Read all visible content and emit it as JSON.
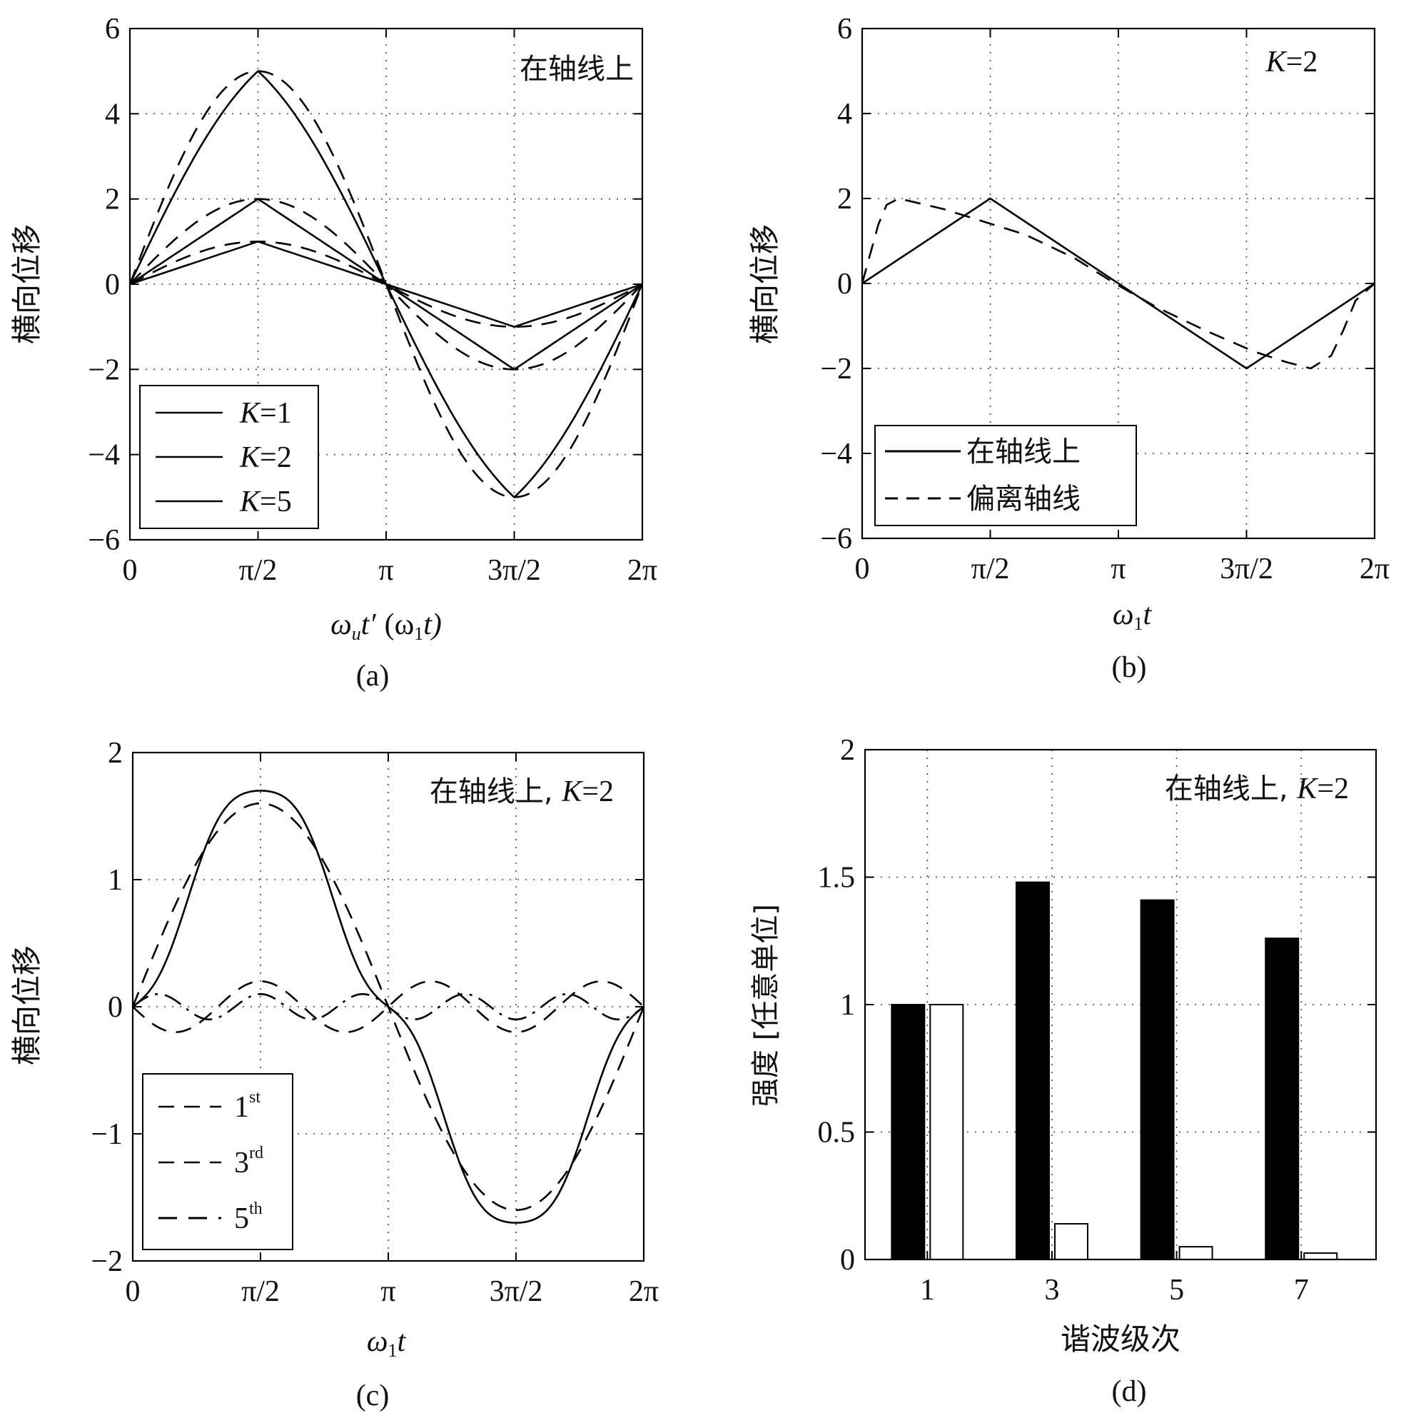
{
  "colors": {
    "ink": "#111111",
    "bar_filled": "#000000",
    "bar_open": "#ffffff"
  },
  "chart_data": [
    {
      "id": "a",
      "type": "line",
      "panel_label": "(a)",
      "annotation": "在轴线上",
      "ylabel": "横向位移",
      "xlabel_parts": {
        "omega": "ω",
        "sub": "u",
        "t_prime": "t′",
        "paren_open": "(ω",
        "sub1": "1",
        "t_close": "t)"
      },
      "xlim": [
        0,
        6.2832
      ],
      "ylim": [
        -6,
        6
      ],
      "yticks": [
        6,
        4,
        2,
        0,
        -2,
        -4,
        -6
      ],
      "ytick_labels": [
        "6",
        "4",
        "2",
        "0",
        "−2",
        "−4",
        "−6"
      ],
      "xticks": [
        0,
        1.5708,
        3.1416,
        4.7124,
        6.2832
      ],
      "xtick_labels": [
        "0",
        "π/2",
        "π",
        "3π/2",
        "2π"
      ],
      "grid": true,
      "legend_position": "bottom-left",
      "legend": [
        {
          "K": "K",
          "rest": "=1"
        },
        {
          "K": "K",
          "rest": "=2"
        },
        {
          "K": "K",
          "rest": "=5"
        }
      ],
      "series": [
        {
          "K": 1,
          "style": "solid",
          "shape": "triangle",
          "amplitude": 1
        },
        {
          "K": 1,
          "style": "dashed",
          "shape": "sine",
          "amplitude": 1
        },
        {
          "K": 2,
          "style": "solid",
          "shape": "triangle",
          "amplitude": 2
        },
        {
          "K": 2,
          "style": "dashed",
          "shape": "sine",
          "amplitude": 2
        },
        {
          "K": 5,
          "style": "solid",
          "shape": "cusp",
          "amplitude": 5
        },
        {
          "K": 5,
          "style": "dashed",
          "shape": "sine",
          "amplitude": 5
        }
      ]
    },
    {
      "id": "b",
      "type": "line",
      "panel_label": "(b)",
      "annotation_parts": {
        "K": "K",
        "rest": "=2"
      },
      "ylabel": "横向位移",
      "xlabel_parts": {
        "omega": "ω",
        "sub": "1",
        "t": "t"
      },
      "xlim": [
        0,
        6.2832
      ],
      "ylim": [
        -6,
        6
      ],
      "yticks": [
        6,
        4,
        2,
        0,
        -2,
        -4,
        -6
      ],
      "ytick_labels": [
        "6",
        "4",
        "2",
        "0",
        "−2",
        "−4",
        "−6"
      ],
      "xticks": [
        0,
        1.5708,
        3.1416,
        4.7124,
        6.2832
      ],
      "xtick_labels": [
        "0",
        "π/2",
        "π",
        "3π/2",
        "2π"
      ],
      "grid": true,
      "legend_position": "bottom-left",
      "legend": [
        "在轴线上",
        "偏离轴线"
      ],
      "series": [
        {
          "name": "在轴线上",
          "style": "solid",
          "x": [
            0,
            1.5708,
            4.7124,
            6.2832
          ],
          "y": [
            0,
            2,
            -2,
            0
          ]
        },
        {
          "name": "偏离轴线",
          "style": "dashed",
          "x": [
            0,
            0.1,
            0.2,
            0.3,
            0.45,
            1.0,
            1.5,
            2.0,
            2.6,
            3.1,
            3.6,
            4.2,
            4.8,
            5.2,
            5.5,
            5.75,
            5.9,
            6.05,
            6.2832
          ],
          "y": [
            0,
            0.7,
            1.4,
            1.85,
            2.0,
            1.75,
            1.45,
            1.15,
            0.6,
            0.0,
            -0.55,
            -1.1,
            -1.6,
            -1.85,
            -2.0,
            -1.7,
            -1.1,
            -0.4,
            0
          ]
        }
      ]
    },
    {
      "id": "c",
      "type": "line",
      "panel_label": "(c)",
      "annotation_parts": {
        "text": "在轴线上, ",
        "K": "K",
        "rest": "=2"
      },
      "ylabel": "横向位移",
      "xlabel_parts": {
        "omega": "ω",
        "sub": "1",
        "t": "t"
      },
      "xlim": [
        0,
        6.2832
      ],
      "ylim": [
        -2,
        2
      ],
      "yticks": [
        2,
        1,
        0,
        -1,
        -2
      ],
      "ytick_labels": [
        "2",
        "1",
        "0",
        "−1",
        "−2"
      ],
      "xticks": [
        0,
        1.5708,
        3.1416,
        4.7124,
        6.2832
      ],
      "xtick_labels": [
        "0",
        "π/2",
        "π",
        "3π/2",
        "2π"
      ],
      "grid": true,
      "legend_position": "bottom-left",
      "legend": [
        {
          "n": "1",
          "sup": "st"
        },
        {
          "n": "3",
          "sup": "rd"
        },
        {
          "n": "5",
          "sup": "th"
        }
      ],
      "series": [
        {
          "style": "solid",
          "harmonics": [
            [
              1,
              1.6
            ],
            [
              3,
              -0.2
            ],
            [
              5,
              -0.1
            ]
          ]
        },
        {
          "style": "dashed",
          "harmonics": [
            [
              1,
              1.6
            ]
          ]
        },
        {
          "style": "dashed",
          "harmonics": [
            [
              3,
              -0.2
            ]
          ]
        },
        {
          "style": "dashdot",
          "harmonics": [
            [
              5,
              0.1
            ]
          ]
        }
      ]
    },
    {
      "id": "d",
      "type": "bar",
      "panel_label": "(d)",
      "annotation_parts": {
        "text": "在轴线上, ",
        "K": "K",
        "rest": "=2"
      },
      "ylabel": "强度 [任意单位]",
      "xlabel": "谐波级次",
      "categories": [
        "1",
        "3",
        "5",
        "7"
      ],
      "ylim": [
        0,
        2
      ],
      "yticks": [
        2,
        1.5,
        1,
        0.5,
        0
      ],
      "ytick_labels": [
        "2",
        "1.5",
        "1",
        "0.5",
        "0"
      ],
      "grid": true,
      "series": [
        {
          "fill": "black",
          "values": [
            1.0,
            1.48,
            1.41,
            1.26
          ]
        },
        {
          "fill": "white",
          "values": [
            1.0,
            0.14,
            0.05,
            0.025
          ]
        }
      ]
    }
  ]
}
